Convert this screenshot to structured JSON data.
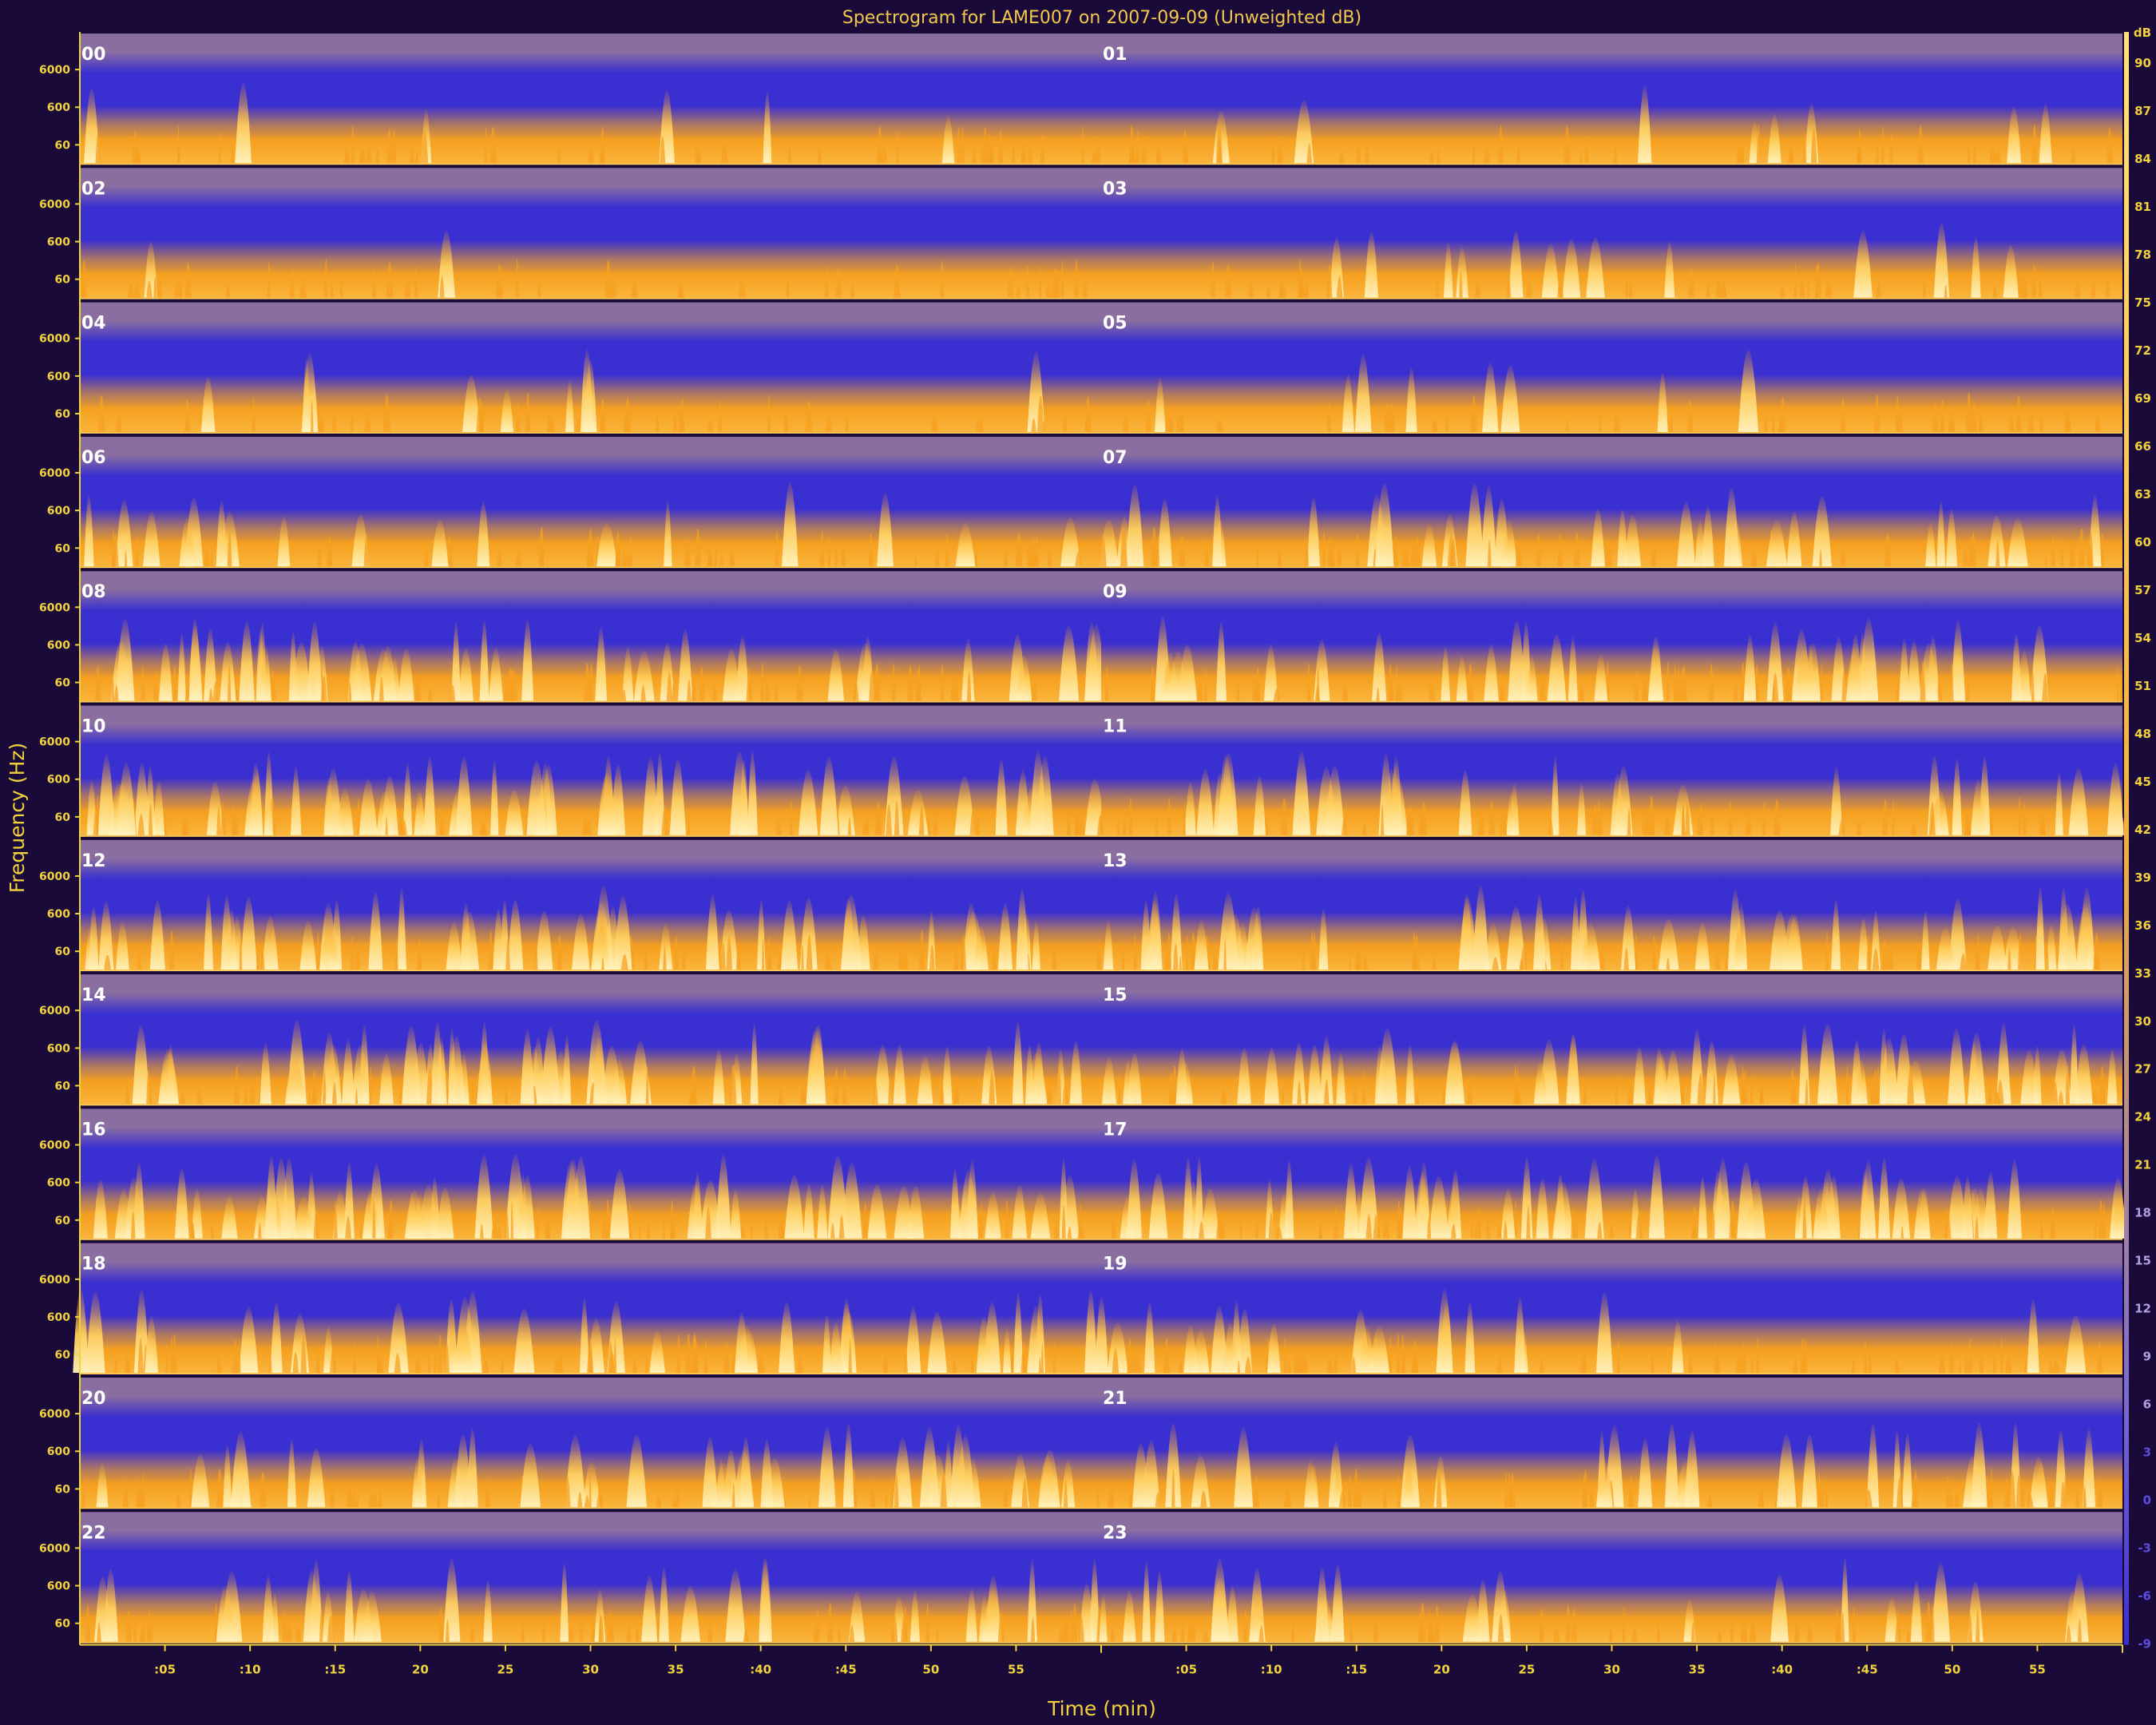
{
  "chart_data": {
    "type": "heatmap",
    "title": "Spectrogram for  LAME007 on 2007-09-09 (Unweighted dB)",
    "xlabel": "Time (min)",
    "ylabel": "Frequency (Hz)",
    "hour_labels": [
      "00",
      "01",
      "02",
      "03",
      "04",
      "05",
      "06",
      "07",
      "08",
      "09",
      "10",
      "11",
      "12",
      "13",
      "14",
      "15",
      "16",
      "17",
      "18",
      "19",
      "20",
      "21",
      "22",
      "23"
    ],
    "freq_ticks": [
      "6000",
      "600",
      "60"
    ],
    "time_ticks": [
      ":05",
      ":10",
      ":15",
      "20",
      "25",
      "30",
      "35",
      ":40",
      ":45",
      "50",
      "55"
    ],
    "time_tick_minutes": [
      5,
      10,
      15,
      20,
      25,
      30,
      35,
      40,
      45,
      50,
      55
    ],
    "db_scale": {
      "unit": "dB",
      "labels": [
        "90",
        "87",
        "84",
        "81",
        "78",
        "75",
        "72",
        "69",
        "66",
        "63",
        "60",
        "57",
        "54",
        "51",
        "48",
        "45",
        "42",
        "39",
        "36",
        "33",
        "30",
        "27",
        "24",
        "21",
        "18",
        "15",
        "12",
        "9",
        "6",
        "3",
        "0",
        "-3",
        "-6",
        "-9"
      ],
      "max": 90,
      "min": -9
    },
    "panel_activity": [
      0.18,
      0.2,
      0.12,
      0.22,
      0.14,
      0.16,
      0.32,
      0.55,
      0.72,
      0.65,
      0.82,
      0.6,
      0.75,
      0.78,
      0.8,
      0.82,
      0.85,
      0.8,
      0.7,
      0.5,
      0.6,
      0.55,
      0.58,
      0.42
    ],
    "colormap": [
      "#3a2fd0",
      "#8a6ea0",
      "#f5a020",
      "#ffd060",
      "#fff3c0"
    ]
  }
}
